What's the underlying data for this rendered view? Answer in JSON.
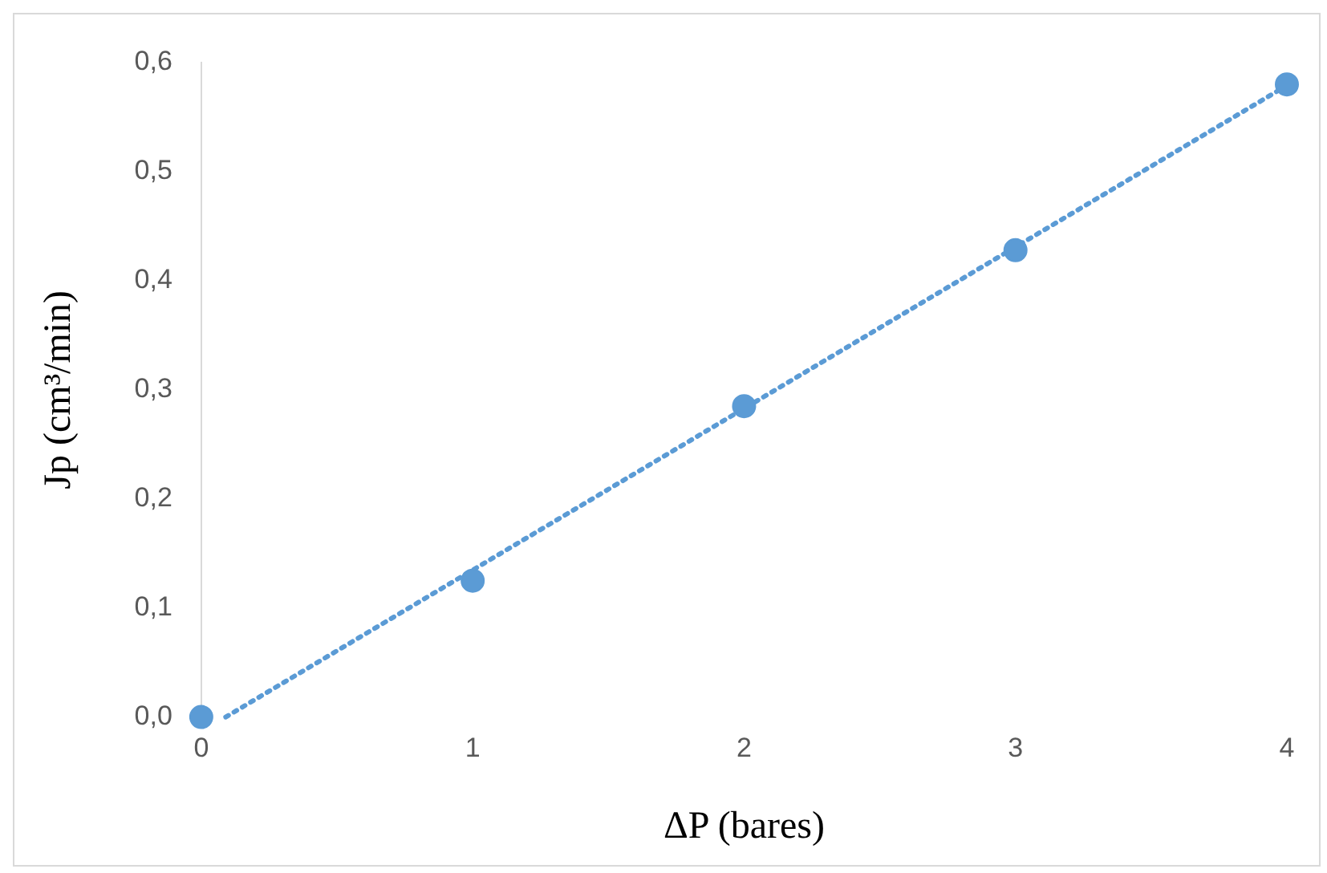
{
  "chart_data": {
    "type": "scatter",
    "xlabel": "ΔP (bares)",
    "ylabel": "Jp (cm³/min)",
    "x": [
      0,
      1,
      2,
      3,
      4
    ],
    "series": [
      {
        "type": "scatter",
        "color": "#5b9bd5",
        "values": [
          0,
          0.125,
          0.285,
          0.428,
          0.58
        ],
        "marker": "circle"
      },
      {
        "type": "line",
        "color": "#5b9bd5",
        "x": [
          0.09,
          4
        ],
        "values": [
          0,
          0.579
        ],
        "marker": "none",
        "line_style": "dotted"
      }
    ],
    "xlim": [
      0,
      4
    ],
    "xticks": [
      0,
      1,
      2,
      3,
      4
    ],
    "ylim": [
      0,
      0.6
    ],
    "yticks": [
      {
        "value": 0,
        "label": "0,0"
      },
      {
        "value": 0.1,
        "label": "0,1"
      },
      {
        "value": 0.2,
        "label": "0,2"
      },
      {
        "value": 0.3,
        "label": "0,3"
      },
      {
        "value": 0.4,
        "label": "0,4"
      },
      {
        "value": 0.5,
        "label": "0,5"
      },
      {
        "value": 0.6,
        "label": "0,6"
      }
    ],
    "grid": false,
    "legend": false
  }
}
